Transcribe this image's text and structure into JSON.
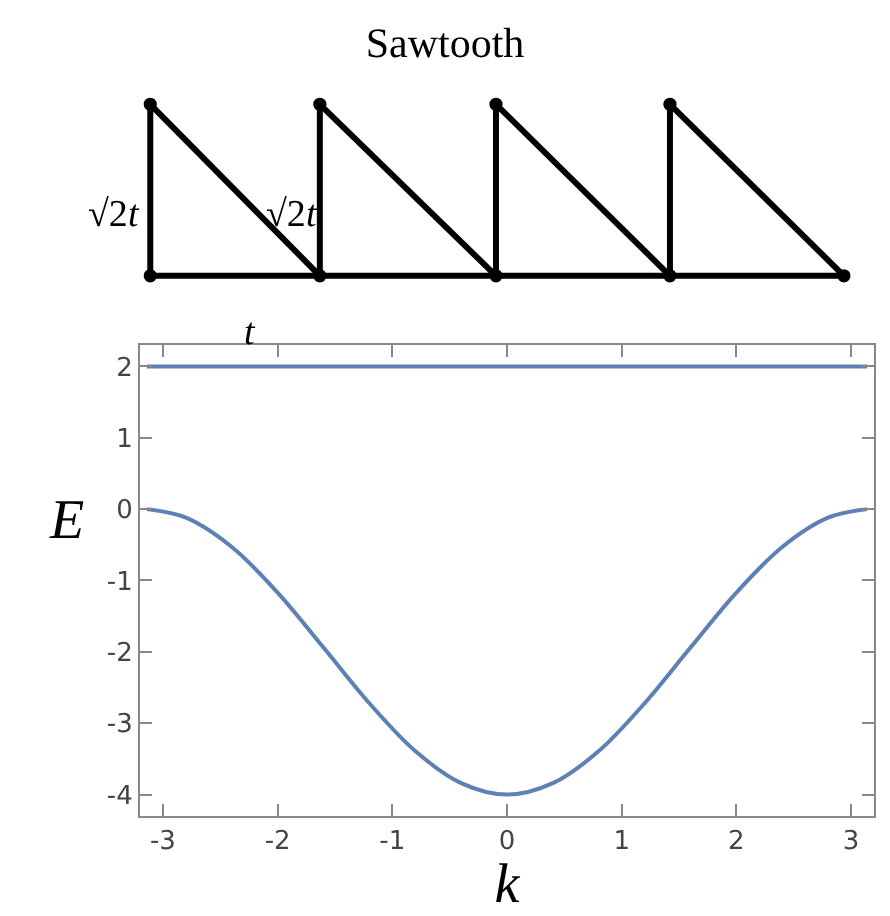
{
  "chart_data": {
    "type": "line",
    "title": "Sawtooth",
    "xlabel": "k",
    "ylabel": "E",
    "annotations": [
      "√2t",
      "√2t",
      "t"
    ],
    "x": [
      -3.14,
      -2.8,
      -2.4,
      -2.0,
      -1.6,
      -1.2,
      -0.8,
      -0.4,
      0,
      0.4,
      0.8,
      1.2,
      1.6,
      2.0,
      2.4,
      2.8,
      3.14
    ],
    "series": [
      {
        "color": "#5e81b5",
        "values": [
          2,
          2,
          2,
          2,
          2,
          2,
          2,
          2,
          2,
          2,
          2,
          2,
          2,
          2,
          2,
          2,
          2
        ]
      },
      {
        "color": "#5e81b5",
        "values": [
          0,
          -0.12,
          -0.53,
          -1.17,
          -1.94,
          -2.72,
          -3.39,
          -3.84,
          -4,
          -3.84,
          -3.39,
          -2.72,
          -1.94,
          -1.17,
          -0.53,
          -0.12,
          0
        ]
      }
    ],
    "xlim": [
      -3.2,
      3.2
    ],
    "ylim": [
      -4.3,
      2.3
    ],
    "xticks": [
      -3,
      -2,
      -1,
      0,
      1,
      2,
      3
    ],
    "yticks": [
      -4,
      -3,
      -2,
      -1,
      0,
      1,
      2
    ],
    "marker": "none",
    "line_style": "solid"
  }
}
